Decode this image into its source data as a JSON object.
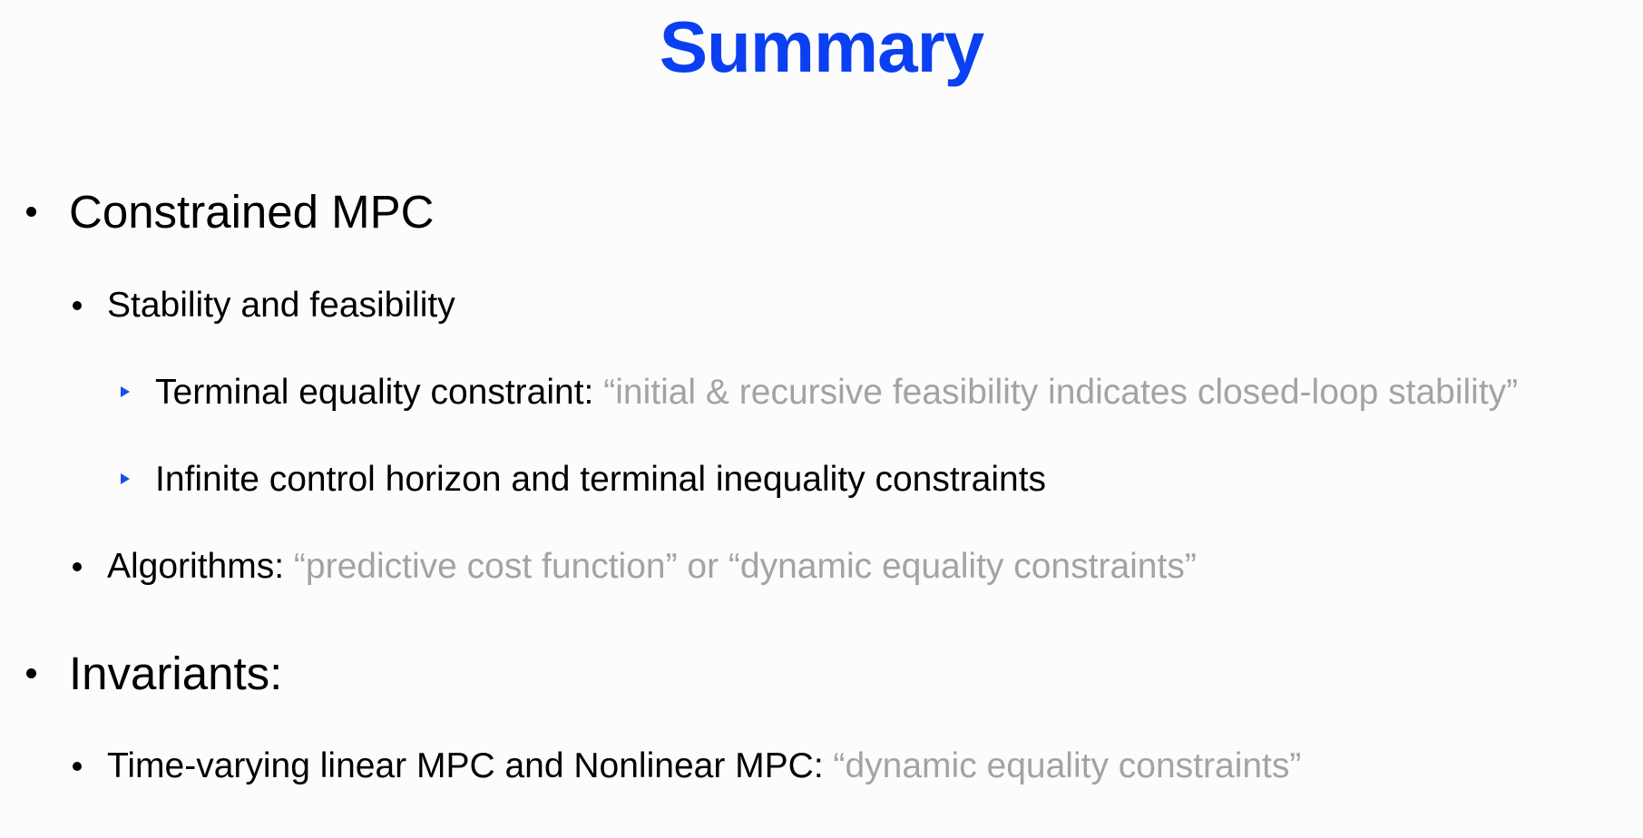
{
  "slide": {
    "title": "Summary",
    "items": [
      {
        "level": 1,
        "label": "Constrained MPC",
        "quote": ""
      },
      {
        "level": 2,
        "label": "Stability and feasibility",
        "quote": ""
      },
      {
        "level": 3,
        "label": "Terminal equality constraint:",
        "quote": "“initial & recursive feasibility indicates closed-loop stability”"
      },
      {
        "level": 3,
        "label": "Infinite control horizon and terminal inequality constraints",
        "quote": ""
      },
      {
        "level": 2,
        "label": "Algorithms:",
        "quote": "“predictive cost function” or “dynamic equality constraints”"
      },
      {
        "level": 1,
        "label": "Invariants:",
        "quote": ""
      },
      {
        "level": 2,
        "label": "Time-varying linear MPC and Nonlinear MPC:",
        "quote": "“dynamic equality constraints”"
      }
    ]
  },
  "colors": {
    "title": "#0a3ff2",
    "text": "#000000",
    "quote": "#a3a3a3",
    "sub_bullet": "#1750e8",
    "background": "#fcfcfc"
  }
}
